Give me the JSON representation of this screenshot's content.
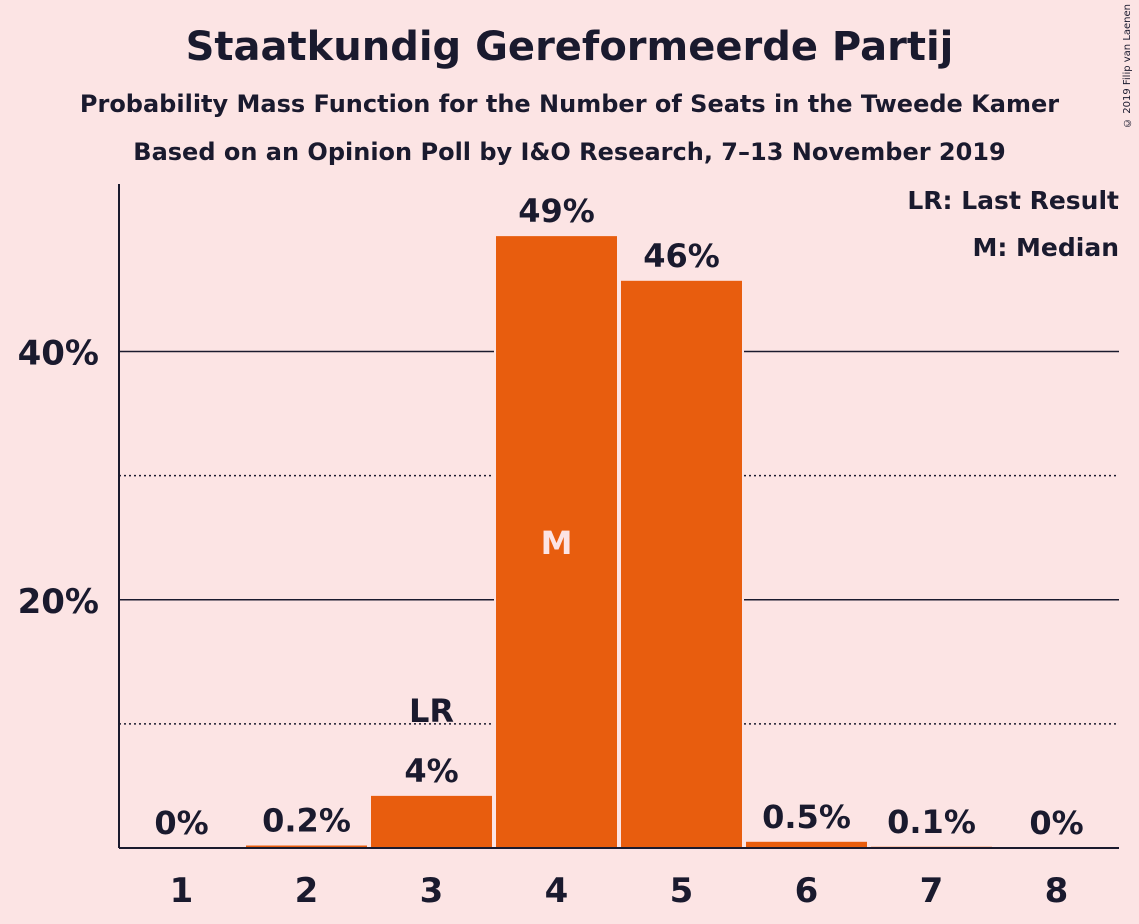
{
  "title": "Staatkundig Gereformeerde Partij",
  "subtitle1": "Probability Mass Function for the Number of Seats in the Tweede Kamer",
  "subtitle2": "Based on an Opinion Poll by I&O Research, 7–13 November 2019",
  "copyright": "© 2019 Filip van Laenen",
  "legend": {
    "last_result": "LR: Last Result",
    "median": "M: Median"
  },
  "colors": {
    "bar": "#e85d0e",
    "background": "#fce4e4",
    "text": "#1a1a2e"
  },
  "chart_data": {
    "type": "bar",
    "categories": [
      "1",
      "2",
      "3",
      "4",
      "5",
      "6",
      "7",
      "8"
    ],
    "values": [
      0,
      0.2,
      4.2,
      49.3,
      45.7,
      0.5,
      0.1,
      0
    ],
    "value_labels": [
      "0%",
      "0.2%",
      "4%",
      "49%",
      "46%",
      "0.5%",
      "0.1%",
      "0%"
    ],
    "ylim": [
      0,
      53.5
    ],
    "yticks": [
      {
        "value": 20,
        "label": "20%"
      },
      {
        "value": 40,
        "label": "40%"
      }
    ],
    "minor_gridlines": [
      10,
      30
    ],
    "last_result_category": "3",
    "last_result_marker": "LR",
    "median_category": "4",
    "median_marker": "M",
    "legend_position": "top-right"
  }
}
